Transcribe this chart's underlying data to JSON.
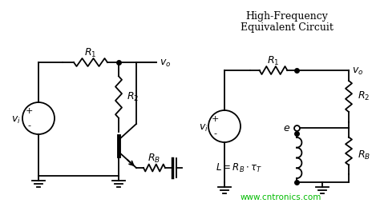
{
  "watermark": "www.cntronics.com",
  "watermark_color": "#00bb00",
  "bg_color": "#ffffff",
  "line_color": "#000000",
  "figsize": [
    4.69,
    2.54
  ],
  "dpi": 100
}
